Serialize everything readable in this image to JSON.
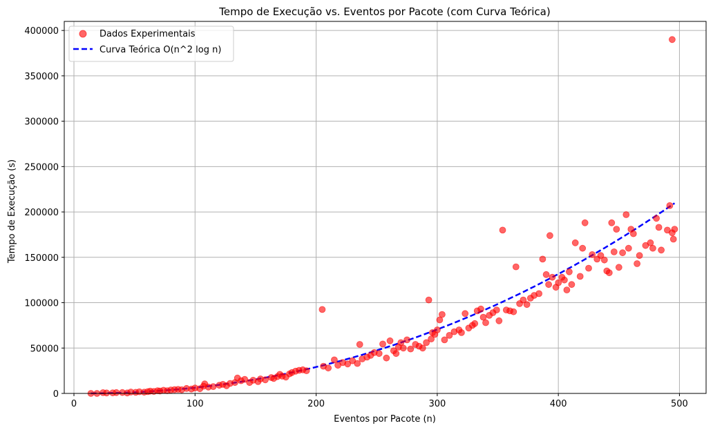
{
  "chart_data": {
    "type": "scatter",
    "title": "Tempo de Execução vs. Eventos por Pacote (com Curva Teórica)",
    "xlabel": "Eventos por Pacote (n)",
    "ylabel": "Tempo de Execução (s)",
    "xlim": [
      -8,
      522
    ],
    "ylim": [
      0,
      410000
    ],
    "xticks": [
      0,
      100,
      200,
      300,
      400,
      500
    ],
    "yticks": [
      0,
      50000,
      100000,
      150000,
      200000,
      250000,
      300000,
      350000,
      400000
    ],
    "grid": true,
    "legend_position": "top-left",
    "colors": {
      "scatter": "#ff0000",
      "curve": "#0000ff",
      "grid": "#b0b0b0"
    },
    "series": [
      {
        "name": "Dados Experimentais",
        "kind": "scatter",
        "points": [
          [
            14,
            0
          ],
          [
            19,
            0
          ],
          [
            24,
            800
          ],
          [
            27,
            500
          ],
          [
            32,
            600
          ],
          [
            35,
            900
          ],
          [
            40,
            1000
          ],
          [
            44,
            500
          ],
          [
            47,
            1500
          ],
          [
            51,
            1200
          ],
          [
            54,
            1800
          ],
          [
            58,
            1400
          ],
          [
            61,
            2000
          ],
          [
            63,
            2500
          ],
          [
            66,
            2200
          ],
          [
            69,
            3000
          ],
          [
            71,
            2700
          ],
          [
            74,
            3500
          ],
          [
            77,
            3000
          ],
          [
            80,
            3800
          ],
          [
            83,
            4200
          ],
          [
            86,
            4500
          ],
          [
            89,
            4000
          ],
          [
            93,
            5500
          ],
          [
            97,
            4800
          ],
          [
            100,
            6000
          ],
          [
            104,
            5200
          ],
          [
            107,
            8000
          ],
          [
            108,
            10500
          ],
          [
            111,
            7000
          ],
          [
            115,
            7500
          ],
          [
            120,
            9000
          ],
          [
            123,
            10000
          ],
          [
            126,
            8500
          ],
          [
            129,
            11000
          ],
          [
            133,
            12000
          ],
          [
            135,
            17000
          ],
          [
            138,
            14000
          ],
          [
            141,
            15500
          ],
          [
            145,
            12000
          ],
          [
            148,
            14500
          ],
          [
            152,
            13000
          ],
          [
            154,
            16000
          ],
          [
            158,
            15000
          ],
          [
            163,
            17500
          ],
          [
            165,
            16500
          ],
          [
            168,
            18500
          ],
          [
            170,
            21000
          ],
          [
            172,
            19000
          ],
          [
            175,
            18000
          ],
          [
            178,
            21500
          ],
          [
            180,
            23000
          ],
          [
            183,
            24500
          ],
          [
            186,
            25500
          ],
          [
            189,
            26000
          ],
          [
            192,
            25000
          ],
          [
            205,
            92500
          ],
          [
            206,
            30000
          ],
          [
            210,
            28000
          ],
          [
            215,
            37000
          ],
          [
            218,
            31000
          ],
          [
            222,
            34000
          ],
          [
            226,
            32500
          ],
          [
            230,
            36000
          ],
          [
            234,
            33000
          ],
          [
            236,
            54000
          ],
          [
            238,
            38000
          ],
          [
            242,
            40000
          ],
          [
            245,
            42000
          ],
          [
            248,
            45000
          ],
          [
            252,
            44000
          ],
          [
            255,
            54500
          ],
          [
            258,
            39000
          ],
          [
            261,
            58000
          ],
          [
            264,
            47000
          ],
          [
            266,
            44000
          ],
          [
            268,
            51000
          ],
          [
            270,
            56000
          ],
          [
            272,
            50000
          ],
          [
            275,
            59000
          ],
          [
            278,
            49000
          ],
          [
            282,
            54000
          ],
          [
            285,
            52000
          ],
          [
            288,
            50000
          ],
          [
            291,
            56000
          ],
          [
            293,
            103000
          ],
          [
            295,
            60000
          ],
          [
            296,
            67000
          ],
          [
            298,
            65000
          ],
          [
            300,
            70000
          ],
          [
            302,
            81000
          ],
          [
            304,
            87000
          ],
          [
            306,
            59000
          ],
          [
            310,
            64000
          ],
          [
            314,
            68000
          ],
          [
            318,
            70000
          ],
          [
            320,
            67000
          ],
          [
            323,
            88000
          ],
          [
            326,
            72000
          ],
          [
            329,
            75000
          ],
          [
            331,
            77000
          ],
          [
            333,
            91000
          ],
          [
            336,
            93000
          ],
          [
            338,
            84000
          ],
          [
            340,
            78000
          ],
          [
            343,
            86000
          ],
          [
            346,
            89000
          ],
          [
            349,
            92000
          ],
          [
            351,
            80000
          ],
          [
            354,
            180000
          ],
          [
            357,
            92000
          ],
          [
            360,
            91000
          ],
          [
            363,
            90000
          ],
          [
            365,
            139500
          ],
          [
            368,
            99000
          ],
          [
            371,
            103000
          ],
          [
            374,
            98000
          ],
          [
            377,
            105000
          ],
          [
            380,
            108000
          ],
          [
            384,
            110000
          ],
          [
            387,
            148000
          ],
          [
            390,
            131000
          ],
          [
            392,
            120000
          ],
          [
            393,
            174000
          ],
          [
            395,
            128000
          ],
          [
            398,
            117000
          ],
          [
            400,
            122000
          ],
          [
            403,
            128000
          ],
          [
            405,
            125000
          ],
          [
            407,
            114000
          ],
          [
            409,
            134000
          ],
          [
            411,
            120000
          ],
          [
            414,
            166000
          ],
          [
            418,
            129000
          ],
          [
            420,
            160000
          ],
          [
            422,
            188000
          ],
          [
            425,
            138000
          ],
          [
            428,
            153000
          ],
          [
            432,
            148000
          ],
          [
            435,
            152000
          ],
          [
            438,
            147000
          ],
          [
            440,
            135000
          ],
          [
            442,
            133000
          ],
          [
            444,
            188000
          ],
          [
            446,
            156000
          ],
          [
            448,
            181000
          ],
          [
            450,
            139000
          ],
          [
            453,
            155000
          ],
          [
            456,
            197000
          ],
          [
            458,
            160000
          ],
          [
            460,
            181000
          ],
          [
            462,
            176000
          ],
          [
            465,
            143000
          ],
          [
            467,
            152000
          ],
          [
            472,
            163000
          ],
          [
            476,
            166000
          ],
          [
            478,
            160000
          ],
          [
            481,
            193000
          ],
          [
            483,
            183000
          ],
          [
            485,
            158000
          ],
          [
            490,
            180000
          ],
          [
            492,
            207000
          ],
          [
            494,
            177000
          ],
          [
            495,
            170000
          ],
          [
            496,
            181000
          ],
          [
            494,
            390000
          ]
        ]
      },
      {
        "name": "Curva Teórica O(n^2 log n)",
        "kind": "line",
        "style": "dashed",
        "x_range": [
          14,
          496
        ],
        "points_from_formula": "y = 0.1373 * n^2 * ln(n)"
      }
    ]
  }
}
